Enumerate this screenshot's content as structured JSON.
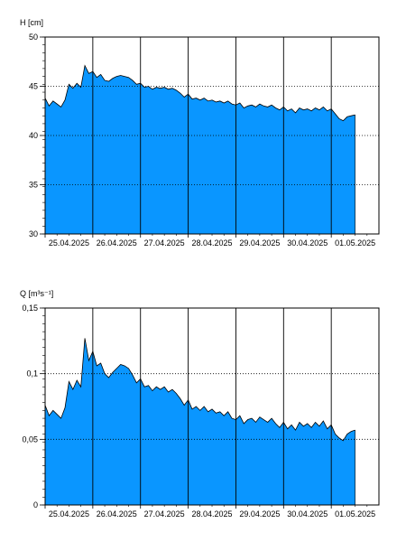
{
  "colors": {
    "fill": "#0a96ff",
    "outline": "#000000",
    "frame": "#000000",
    "grid": "#000000",
    "background": "#ffffff"
  },
  "chart_data": [
    {
      "type": "area",
      "ylabel": "H [cm]",
      "ylim": [
        30,
        50
      ],
      "yticks": [
        30,
        35,
        40,
        45,
        50
      ],
      "ytick_labels": [
        "30",
        "35",
        "40",
        "45",
        "50"
      ],
      "dotted_grid_y": [
        35,
        40,
        45
      ],
      "xlim": [
        "2025-04-25T00:00",
        "2025-05-01T23:59"
      ],
      "xtick_labels": [
        "25.04.2025",
        "26.04.2025",
        "27.04.2025",
        "28.04.2025",
        "29.04.2025",
        "30.04.2025",
        "01.05.2025"
      ],
      "day_divider_lines": [
        "26.04.2025",
        "27.04.2025",
        "28.04.2025",
        "29.04.2025",
        "30.04.2025",
        "01.05.2025"
      ],
      "series": [
        {
          "x": [
            "2025-04-25T00:00",
            "2025-04-25T02:00",
            "2025-04-25T04:00",
            "2025-04-25T06:00",
            "2025-04-25T08:00",
            "2025-04-25T10:00",
            "2025-04-25T12:00",
            "2025-04-25T14:00",
            "2025-04-25T16:00",
            "2025-04-25T18:00",
            "2025-04-25T20:00",
            "2025-04-25T22:00",
            "2025-04-26T00:00",
            "2025-04-26T02:00",
            "2025-04-26T04:00",
            "2025-04-26T06:00",
            "2025-04-26T08:00",
            "2025-04-26T10:00",
            "2025-04-26T12:00",
            "2025-04-26T14:00",
            "2025-04-26T16:00",
            "2025-04-26T18:00",
            "2025-04-26T20:00",
            "2025-04-26T22:00",
            "2025-04-27T00:00",
            "2025-04-27T02:00",
            "2025-04-27T04:00",
            "2025-04-27T06:00",
            "2025-04-27T08:00",
            "2025-04-27T10:00",
            "2025-04-27T12:00",
            "2025-04-27T14:00",
            "2025-04-27T16:00",
            "2025-04-27T18:00",
            "2025-04-27T20:00",
            "2025-04-27T22:00",
            "2025-04-28T00:00",
            "2025-04-28T02:00",
            "2025-04-28T04:00",
            "2025-04-28T06:00",
            "2025-04-28T08:00",
            "2025-04-28T10:00",
            "2025-04-28T12:00",
            "2025-04-28T14:00",
            "2025-04-28T16:00",
            "2025-04-28T18:00",
            "2025-04-28T20:00",
            "2025-04-28T22:00",
            "2025-04-29T00:00",
            "2025-04-29T02:00",
            "2025-04-29T04:00",
            "2025-04-29T06:00",
            "2025-04-29T08:00",
            "2025-04-29T10:00",
            "2025-04-29T12:00",
            "2025-04-29T14:00",
            "2025-04-29T16:00",
            "2025-04-29T18:00",
            "2025-04-29T20:00",
            "2025-04-29T22:00",
            "2025-04-30T00:00",
            "2025-04-30T02:00",
            "2025-04-30T04:00",
            "2025-04-30T06:00",
            "2025-04-30T08:00",
            "2025-04-30T10:00",
            "2025-04-30T12:00",
            "2025-04-30T14:00",
            "2025-04-30T16:00",
            "2025-04-30T18:00",
            "2025-04-30T20:00",
            "2025-04-30T22:00",
            "2025-05-01T00:00",
            "2025-05-01T02:00",
            "2025-05-01T04:00",
            "2025-05-01T06:00",
            "2025-05-01T08:00",
            "2025-05-01T10:00",
            "2025-05-01T12:00"
          ],
          "values": [
            43.8,
            43.0,
            43.5,
            43.2,
            42.9,
            43.6,
            45.2,
            44.8,
            45.3,
            44.9,
            47.1,
            46.3,
            46.5,
            45.9,
            46.2,
            45.6,
            45.5,
            45.8,
            46.0,
            46.1,
            46.0,
            45.9,
            45.6,
            45.2,
            45.3,
            44.9,
            45.0,
            44.7,
            44.9,
            44.8,
            44.9,
            44.7,
            44.8,
            44.6,
            44.3,
            43.9,
            44.2,
            43.7,
            43.8,
            43.6,
            43.8,
            43.5,
            43.6,
            43.4,
            43.5,
            43.3,
            43.5,
            43.2,
            43.1,
            43.3,
            42.8,
            43.0,
            43.1,
            42.9,
            43.2,
            43.0,
            42.9,
            43.1,
            42.8,
            42.6,
            42.9,
            42.5,
            42.7,
            42.3,
            42.8,
            42.6,
            42.7,
            42.5,
            42.8,
            42.6,
            42.9,
            42.5,
            42.7,
            42.2,
            41.7,
            41.5,
            41.9,
            42.0,
            42.1
          ]
        }
      ]
    },
    {
      "type": "area",
      "ylabel": "Q [m³s⁻¹]",
      "ylim": [
        0,
        0.15
      ],
      "yticks": [
        0,
        0.05,
        0.1,
        0.15
      ],
      "ytick_labels": [
        "0",
        "0,05",
        "0,1",
        "0,15"
      ],
      "dotted_grid_y": [
        0.05,
        0.1
      ],
      "xlim": [
        "2025-04-25T00:00",
        "2025-05-01T23:59"
      ],
      "xtick_labels": [
        "25.04.2025",
        "26.04.2025",
        "27.04.2025",
        "28.04.2025",
        "29.04.2025",
        "30.04.2025",
        "01.05.2025"
      ],
      "day_divider_lines": [
        "26.04.2025",
        "27.04.2025",
        "28.04.2025",
        "29.04.2025",
        "30.04.2025",
        "01.05.2025"
      ],
      "series": [
        {
          "x": [
            "2025-04-25T00:00",
            "2025-04-25T02:00",
            "2025-04-25T04:00",
            "2025-04-25T06:00",
            "2025-04-25T08:00",
            "2025-04-25T10:00",
            "2025-04-25T12:00",
            "2025-04-25T14:00",
            "2025-04-25T16:00",
            "2025-04-25T18:00",
            "2025-04-25T20:00",
            "2025-04-25T22:00",
            "2025-04-26T00:00",
            "2025-04-26T02:00",
            "2025-04-26T04:00",
            "2025-04-26T06:00",
            "2025-04-26T08:00",
            "2025-04-26T10:00",
            "2025-04-26T12:00",
            "2025-04-26T14:00",
            "2025-04-26T16:00",
            "2025-04-26T18:00",
            "2025-04-26T20:00",
            "2025-04-26T22:00",
            "2025-04-27T00:00",
            "2025-04-27T02:00",
            "2025-04-27T04:00",
            "2025-04-27T06:00",
            "2025-04-27T08:00",
            "2025-04-27T10:00",
            "2025-04-27T12:00",
            "2025-04-27T14:00",
            "2025-04-27T16:00",
            "2025-04-27T18:00",
            "2025-04-27T20:00",
            "2025-04-27T22:00",
            "2025-04-28T00:00",
            "2025-04-28T02:00",
            "2025-04-28T04:00",
            "2025-04-28T06:00",
            "2025-04-28T08:00",
            "2025-04-28T10:00",
            "2025-04-28T12:00",
            "2025-04-28T14:00",
            "2025-04-28T16:00",
            "2025-04-28T18:00",
            "2025-04-28T20:00",
            "2025-04-28T22:00",
            "2025-04-29T00:00",
            "2025-04-29T02:00",
            "2025-04-29T04:00",
            "2025-04-29T06:00",
            "2025-04-29T08:00",
            "2025-04-29T10:00",
            "2025-04-29T12:00",
            "2025-04-29T14:00",
            "2025-04-29T16:00",
            "2025-04-29T18:00",
            "2025-04-29T20:00",
            "2025-04-29T22:00",
            "2025-04-30T00:00",
            "2025-04-30T02:00",
            "2025-04-30T04:00",
            "2025-04-30T06:00",
            "2025-04-30T08:00",
            "2025-04-30T10:00",
            "2025-04-30T12:00",
            "2025-04-30T14:00",
            "2025-04-30T16:00",
            "2025-04-30T18:00",
            "2025-04-30T20:00",
            "2025-04-30T22:00",
            "2025-05-01T00:00",
            "2025-05-01T02:00",
            "2025-05-01T04:00",
            "2025-05-01T06:00",
            "2025-05-01T08:00",
            "2025-05-01T10:00",
            "2025-05-01T12:00"
          ],
          "values": [
            0.076,
            0.068,
            0.072,
            0.069,
            0.066,
            0.074,
            0.094,
            0.088,
            0.095,
            0.09,
            0.127,
            0.11,
            0.117,
            0.106,
            0.108,
            0.1,
            0.097,
            0.101,
            0.104,
            0.107,
            0.106,
            0.104,
            0.099,
            0.093,
            0.096,
            0.09,
            0.091,
            0.087,
            0.09,
            0.088,
            0.09,
            0.086,
            0.088,
            0.085,
            0.081,
            0.076,
            0.08,
            0.073,
            0.075,
            0.072,
            0.075,
            0.071,
            0.073,
            0.07,
            0.071,
            0.068,
            0.071,
            0.066,
            0.065,
            0.068,
            0.062,
            0.065,
            0.066,
            0.063,
            0.067,
            0.065,
            0.063,
            0.066,
            0.062,
            0.059,
            0.063,
            0.058,
            0.061,
            0.057,
            0.063,
            0.06,
            0.062,
            0.059,
            0.063,
            0.06,
            0.064,
            0.058,
            0.061,
            0.054,
            0.051,
            0.049,
            0.054,
            0.056,
            0.057
          ]
        }
      ]
    }
  ]
}
